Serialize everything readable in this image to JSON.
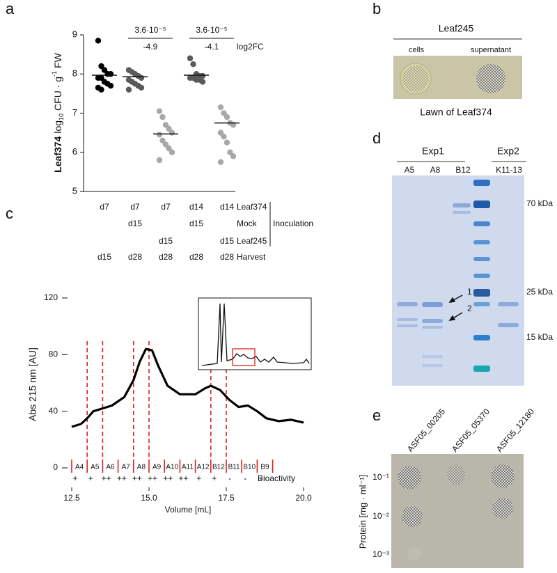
{
  "panel_labels": [
    "a",
    "b",
    "c",
    "d",
    "e"
  ],
  "chart_data": [
    {
      "type": "strip",
      "ylabel": [
        "Leaf374",
        "log",
        "10",
        "CFU · g",
        "-1",
        "FW"
      ],
      "ylim": [
        5,
        9
      ],
      "yticks": [
        5,
        6,
        7,
        8,
        9
      ],
      "series": [
        {
          "color": "#000000",
          "values": [
            8.85,
            8.2,
            8.1,
            8.0,
            8.0,
            7.9,
            7.9,
            7.8,
            7.75,
            7.7,
            7.65,
            7.6
          ],
          "median": 7.97
        },
        {
          "color": "#5a5a5a",
          "values": [
            8.1,
            8.05,
            8.0,
            7.95,
            7.9,
            7.85,
            7.8,
            7.75,
            7.7,
            7.65,
            7.6
          ],
          "median": 7.93
        },
        {
          "color": "#a8a8a8",
          "values": [
            7.05,
            6.9,
            6.7,
            6.6,
            6.5,
            6.45,
            6.3,
            6.2,
            6.1,
            6.0,
            5.8
          ],
          "median": 6.47
        },
        {
          "color": "#5a5a5a",
          "values": [
            8.4,
            8.25,
            8.0,
            7.95,
            7.95,
            7.9,
            7.9,
            7.85,
            7.85,
            7.8
          ],
          "median": 7.97
        },
        {
          "color": "#a8a8a8",
          "values": [
            7.15,
            7.0,
            6.9,
            6.75,
            6.7,
            6.5,
            6.4,
            6.25,
            6.0,
            5.9,
            5.75
          ],
          "median": 6.75
        }
      ],
      "comparisons": [
        {
          "p_value": "3.6·10⁻⁵",
          "log2fc": "-4.9"
        },
        {
          "p_value": "3.6·10⁻⁵",
          "log2fc": "-4.1"
        }
      ],
      "log2fc_label": "log2FC",
      "conditions": {
        "rows": [
          {
            "label": "Leaf374",
            "cells": [
              "d7",
              "d7",
              "d7",
              "d14",
              "d14"
            ]
          },
          {
            "label": "Mock",
            "cells": [
              null,
              "d15",
              null,
              "d15",
              null
            ]
          },
          {
            "label": "Leaf245",
            "cells": [
              null,
              null,
              "d15",
              null,
              "d15"
            ]
          },
          {
            "label": "Harvest",
            "cells": [
              "d15",
              "d28",
              "d28",
              "d28",
              "d28"
            ]
          }
        ],
        "group_label": "Inoculation"
      }
    },
    {
      "type": "line",
      "ylabel": "Abs 215 nm [AU]",
      "xlabel": "Volume [mL]",
      "xlim": [
        12.5,
        20
      ],
      "ylim": [
        0,
        120
      ],
      "xticks": [
        12.5,
        {
          "value": 15,
          "label": "15.0"
        },
        17.5,
        {
          "value": 20,
          "label": "20.0"
        }
      ],
      "yticks": [
        0,
        40,
        80,
        120
      ],
      "color": "#000000",
      "x": [
        12.5,
        12.8,
        13.0,
        13.2,
        13.5,
        13.8,
        14.2,
        14.5,
        14.7,
        14.9,
        15.1,
        15.3,
        15.6,
        16.0,
        16.5,
        16.8,
        17.0,
        17.3,
        17.6,
        17.9,
        18.2,
        18.5,
        18.8,
        19.2,
        19.6,
        20.0
      ],
      "values": [
        29,
        31,
        35,
        40,
        42,
        44,
        50,
        62,
        75,
        84,
        83,
        72,
        58,
        52,
        52,
        56,
        58,
        55,
        48,
        43,
        44,
        40,
        35,
        33,
        34,
        32
      ],
      "marker_x": [
        13,
        13.5,
        14.5,
        15,
        17,
        17.5
      ],
      "marker_color": "#e02020",
      "fractions": {
        "edges": [
          12.5,
          13,
          13.5,
          14,
          14.5,
          15,
          15.5,
          16,
          16.5,
          17,
          17.5,
          18,
          18.5,
          19
        ],
        "labels": [
          "A4",
          "A5",
          "A6",
          "A7",
          "A8",
          "A9",
          "A10",
          "A11",
          "A12",
          "B12",
          "B11",
          "B10",
          "B9"
        ],
        "bioactivity": [
          "+",
          "+",
          "++",
          "++",
          "++",
          "++",
          "++",
          "++",
          "+",
          "+",
          "-",
          "-",
          "-"
        ],
        "label": "Bioactivity"
      }
    }
  ],
  "panel_b": {
    "header": "Leaf245",
    "columns": [
      "cells",
      "supernatant"
    ],
    "caption": "Lawn of Leaf374"
  },
  "panel_d": {
    "groups": [
      {
        "label": "Exp1",
        "lanes": [
          "A5",
          "A8",
          "B12"
        ]
      },
      {
        "label": "Exp2",
        "lanes": [
          "K11-13"
        ]
      }
    ],
    "markers": [
      "70 kDa",
      "25 kDa",
      "15 kDa"
    ],
    "arrows": [
      "1",
      "2"
    ]
  },
  "panel_e": {
    "columns": [
      "ASF05_00205",
      "ASF05_05370",
      "ASF05_12180"
    ],
    "ylabel": "Protein [mg · ml⁻¹]",
    "rows": [
      "10⁻¹",
      "10⁻²",
      "10⁻³"
    ]
  }
}
